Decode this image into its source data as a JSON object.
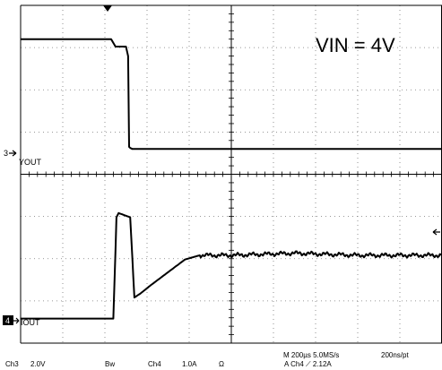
{
  "annotation": "VIN = 4V",
  "ch3_label": "YOUT",
  "ch3_marker": "3",
  "ch4_label": "IOUT",
  "ch4_marker": "4",
  "status": {
    "ch3": "Ch3",
    "ch3_scale": "2.0V",
    "bw": "Bw",
    "ch4": "Ch4",
    "ch4_scale": "1.0A",
    "ohm": "Ω",
    "timebase": "M 200µs 5.0MS/s",
    "sample": "200ns/pt",
    "trigger": "A  Ch4  ⟋  2.12A"
  },
  "colors": {
    "trace": "#000000",
    "grid": "#777777"
  },
  "chart_data": {
    "type": "line",
    "x_unit": "µs",
    "x_range": [
      0,
      2000
    ],
    "series": [
      {
        "name": "YOUT",
        "channel": "Ch3",
        "unit": "V",
        "volts_per_div": 2.0,
        "x": [
          0,
          430,
          450,
          500,
          510,
          515,
          520,
          530,
          1000,
          2000
        ],
        "y": [
          5.4,
          5.4,
          5.05,
          5.05,
          4.6,
          0.3,
          0.25,
          0.2,
          0.2,
          0.2
        ]
      },
      {
        "name": "IOUT",
        "channel": "Ch4",
        "unit": "A",
        "amps_per_div": 1.0,
        "x": [
          0,
          440,
          455,
          465,
          520,
          540,
          570,
          620,
          700,
          780,
          850,
          1000,
          1300,
          1600,
          2000
        ],
        "y": [
          0.05,
          0.05,
          2.45,
          2.55,
          2.45,
          0.55,
          0.65,
          0.85,
          1.15,
          1.45,
          1.55,
          1.55,
          1.6,
          1.55,
          1.55
        ]
      }
    ]
  }
}
